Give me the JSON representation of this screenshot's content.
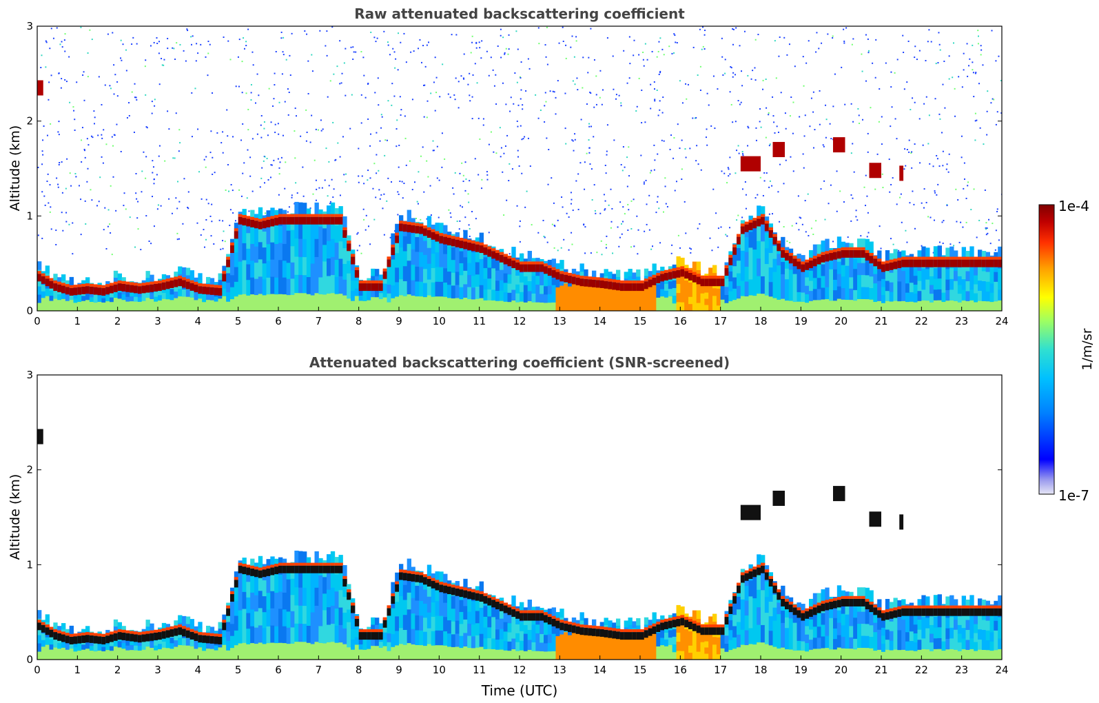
{
  "chart_data": [
    {
      "type": "heatmap",
      "title": "Raw attenuated backscattering coefficient",
      "xlabel": "",
      "ylabel": "Altitude (km)",
      "xlim": [
        0,
        24
      ],
      "ylim": [
        0,
        3
      ],
      "x_ticks": [
        "0",
        "1",
        "2",
        "3",
        "4",
        "5",
        "6",
        "7",
        "8",
        "9",
        "10",
        "11",
        "12",
        "13",
        "14",
        "15",
        "16",
        "17",
        "18",
        "19",
        "20",
        "21",
        "22",
        "23",
        "24"
      ],
      "y_ticks": [
        "0",
        "1",
        "2",
        "3"
      ],
      "features": {
        "cloud_base_track_time_h": [
          0.0,
          0.2,
          0.4,
          0.8,
          1.2,
          1.6,
          2.0,
          2.5,
          3.0,
          3.5,
          4.0,
          4.5,
          5.0,
          5.5,
          6.0,
          6.5,
          7.0,
          7.5,
          8.0,
          8.5,
          9.0,
          9.5,
          10.0,
          10.5,
          11.0,
          11.5,
          12.0,
          12.5,
          13.0,
          13.5,
          14.0,
          14.5,
          15.0,
          15.5,
          16.0,
          16.5,
          17.0,
          17.5,
          18.0,
          18.5,
          19.0,
          19.5,
          20.0,
          20.5,
          21.0,
          21.5
        ],
        "cloud_base_track_altitude_km": [
          0.35,
          0.3,
          0.25,
          0.2,
          0.22,
          0.2,
          0.25,
          0.22,
          0.25,
          0.3,
          0.22,
          0.2,
          0.95,
          0.9,
          0.95,
          0.95,
          0.95,
          0.95,
          0.25,
          0.25,
          0.88,
          0.85,
          0.75,
          0.7,
          0.65,
          0.55,
          0.45,
          0.45,
          0.35,
          0.3,
          0.28,
          0.25,
          0.25,
          0.35,
          0.4,
          0.3,
          0.3,
          0.85,
          0.95,
          0.6,
          0.45,
          0.55,
          0.6,
          0.6,
          0.45,
          0.5
        ],
        "elevated_layers": [
          {
            "t0": 0.0,
            "t1": 0.15,
            "alt_km": 2.35
          },
          {
            "t0": 17.5,
            "t1": 18.0,
            "alt_km": 1.55
          },
          {
            "t0": 18.3,
            "t1": 18.6,
            "alt_km": 1.7
          },
          {
            "t0": 19.8,
            "t1": 20.1,
            "alt_km": 1.75
          },
          {
            "t0": 20.7,
            "t1": 21.0,
            "alt_km": 1.48
          },
          {
            "t0": 21.45,
            "t1": 21.55,
            "alt_km": 1.45
          }
        ]
      }
    },
    {
      "type": "heatmap",
      "title": "Attenuated backscattering coefficient (SNR-screened)",
      "xlabel": "Time (UTC)",
      "ylabel": "Altitude (km)",
      "xlim": [
        0,
        24
      ],
      "ylim": [
        0,
        3
      ],
      "x_ticks": [
        "0",
        "1",
        "2",
        "3",
        "4",
        "5",
        "6",
        "7",
        "8",
        "9",
        "10",
        "11",
        "12",
        "13",
        "14",
        "15",
        "16",
        "17",
        "18",
        "19",
        "20",
        "21",
        "22",
        "23",
        "24"
      ],
      "y_ticks": [
        "0",
        "1",
        "2",
        "3"
      ]
    }
  ],
  "colorbar": {
    "label": "1/m/sr",
    "max_label": "1e-4",
    "min_label": "1e-7",
    "scale": "log",
    "colormap": [
      "#e6e6f5",
      "#9999ee",
      "#0000ff",
      "#0080ff",
      "#00c0ff",
      "#30e0d0",
      "#a0ff60",
      "#ffff00",
      "#ffa000",
      "#ff3000",
      "#c00000",
      "#800000"
    ]
  }
}
